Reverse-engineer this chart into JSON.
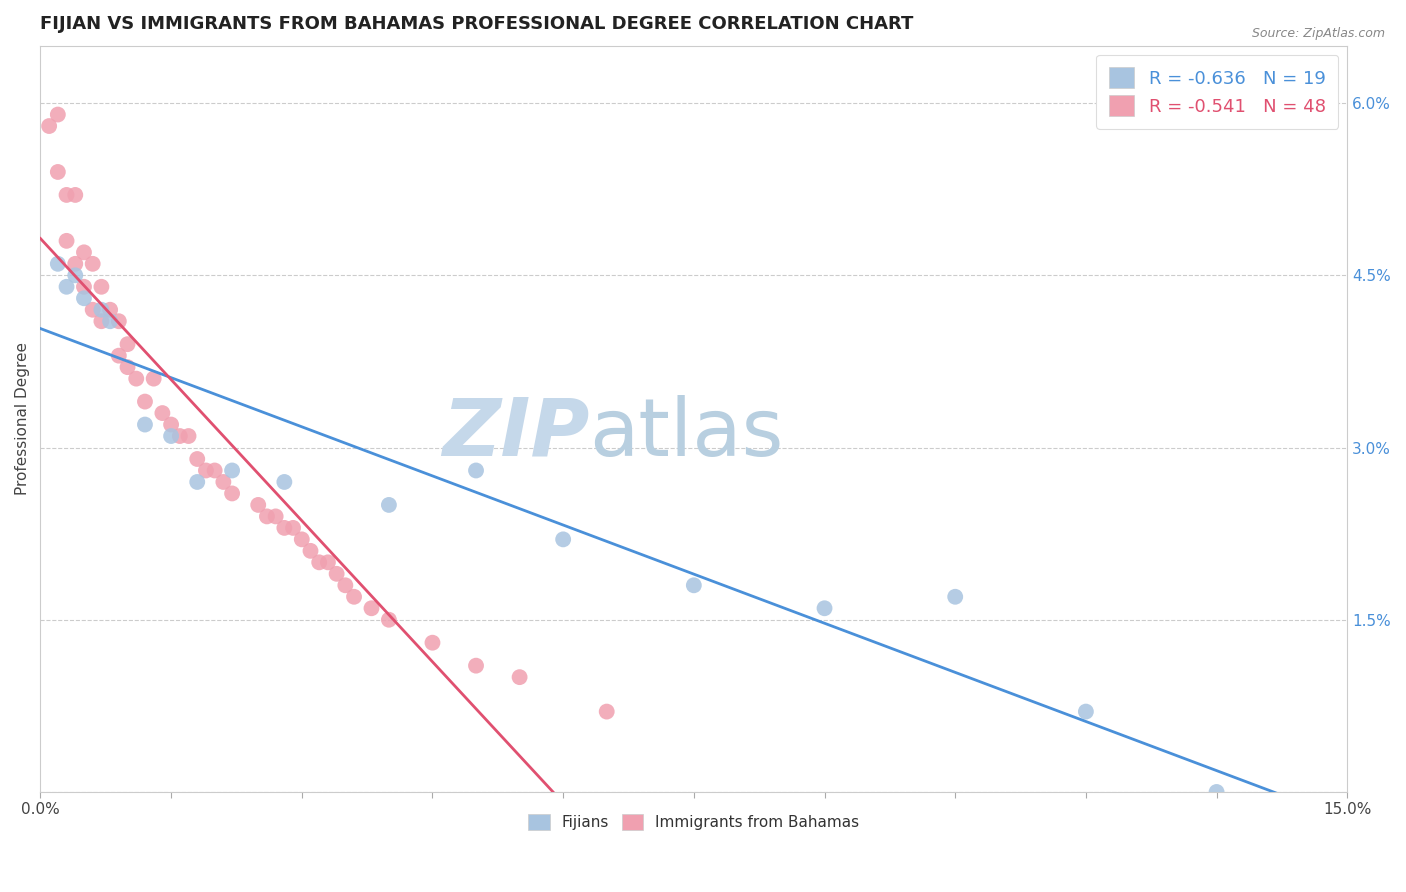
{
  "title": "FIJIAN VS IMMIGRANTS FROM BAHAMAS PROFESSIONAL DEGREE CORRELATION CHART",
  "source_text": "Source: ZipAtlas.com",
  "ylabel": "Professional Degree",
  "xlim": [
    0.0,
    0.15
  ],
  "ylim": [
    0.0,
    0.065
  ],
  "xticks": [
    0.0,
    0.015,
    0.03,
    0.045,
    0.06,
    0.075,
    0.09,
    0.105,
    0.12,
    0.135,
    0.15
  ],
  "xticklabels": [
    "0.0%",
    "",
    "",
    "",
    "",
    "",
    "",
    "",
    "",
    "",
    "15.0%"
  ],
  "yticks": [
    0.0,
    0.015,
    0.03,
    0.045,
    0.06
  ],
  "yticklabels_right": [
    "",
    "1.5%",
    "3.0%",
    "4.5%",
    "6.0%"
  ],
  "grid_color": "#cccccc",
  "background_color": "#ffffff",
  "watermark_zip_color": "#c5d8ea",
  "watermark_atlas_color": "#b8cfe0",
  "fijian_color": "#a8c4e0",
  "bahamas_color": "#f0a0b0",
  "fijian_line_color": "#4a90d9",
  "bahamas_line_color": "#e05070",
  "legend_R1": "-0.636",
  "legend_N1": "19",
  "legend_R2": "-0.541",
  "legend_N2": "48",
  "fijian_scatter_x": [
    0.002,
    0.003,
    0.004,
    0.005,
    0.007,
    0.008,
    0.012,
    0.015,
    0.018,
    0.022,
    0.028,
    0.04,
    0.05,
    0.06,
    0.075,
    0.09,
    0.105,
    0.12,
    0.135
  ],
  "fijian_scatter_y": [
    0.046,
    0.044,
    0.045,
    0.043,
    0.042,
    0.041,
    0.032,
    0.031,
    0.027,
    0.028,
    0.027,
    0.025,
    0.028,
    0.022,
    0.018,
    0.016,
    0.017,
    0.007,
    0.0
  ],
  "bahamas_scatter_x": [
    0.001,
    0.002,
    0.002,
    0.003,
    0.003,
    0.004,
    0.004,
    0.005,
    0.005,
    0.006,
    0.006,
    0.007,
    0.007,
    0.008,
    0.009,
    0.009,
    0.01,
    0.01,
    0.011,
    0.012,
    0.013,
    0.014,
    0.015,
    0.016,
    0.017,
    0.018,
    0.019,
    0.02,
    0.021,
    0.022,
    0.025,
    0.026,
    0.027,
    0.028,
    0.029,
    0.03,
    0.031,
    0.032,
    0.033,
    0.034,
    0.035,
    0.036,
    0.038,
    0.04,
    0.045,
    0.05,
    0.055,
    0.065
  ],
  "bahamas_scatter_y": [
    0.058,
    0.059,
    0.054,
    0.052,
    0.048,
    0.052,
    0.046,
    0.047,
    0.044,
    0.046,
    0.042,
    0.044,
    0.041,
    0.042,
    0.041,
    0.038,
    0.039,
    0.037,
    0.036,
    0.034,
    0.036,
    0.033,
    0.032,
    0.031,
    0.031,
    0.029,
    0.028,
    0.028,
    0.027,
    0.026,
    0.025,
    0.024,
    0.024,
    0.023,
    0.023,
    0.022,
    0.021,
    0.02,
    0.02,
    0.019,
    0.018,
    0.017,
    0.016,
    0.015,
    0.013,
    0.011,
    0.01,
    0.007
  ],
  "title_fontsize": 13,
  "label_fontsize": 11,
  "tick_fontsize": 11,
  "tick_color_blue": "#4a90d9",
  "tick_color_dark": "#444444"
}
